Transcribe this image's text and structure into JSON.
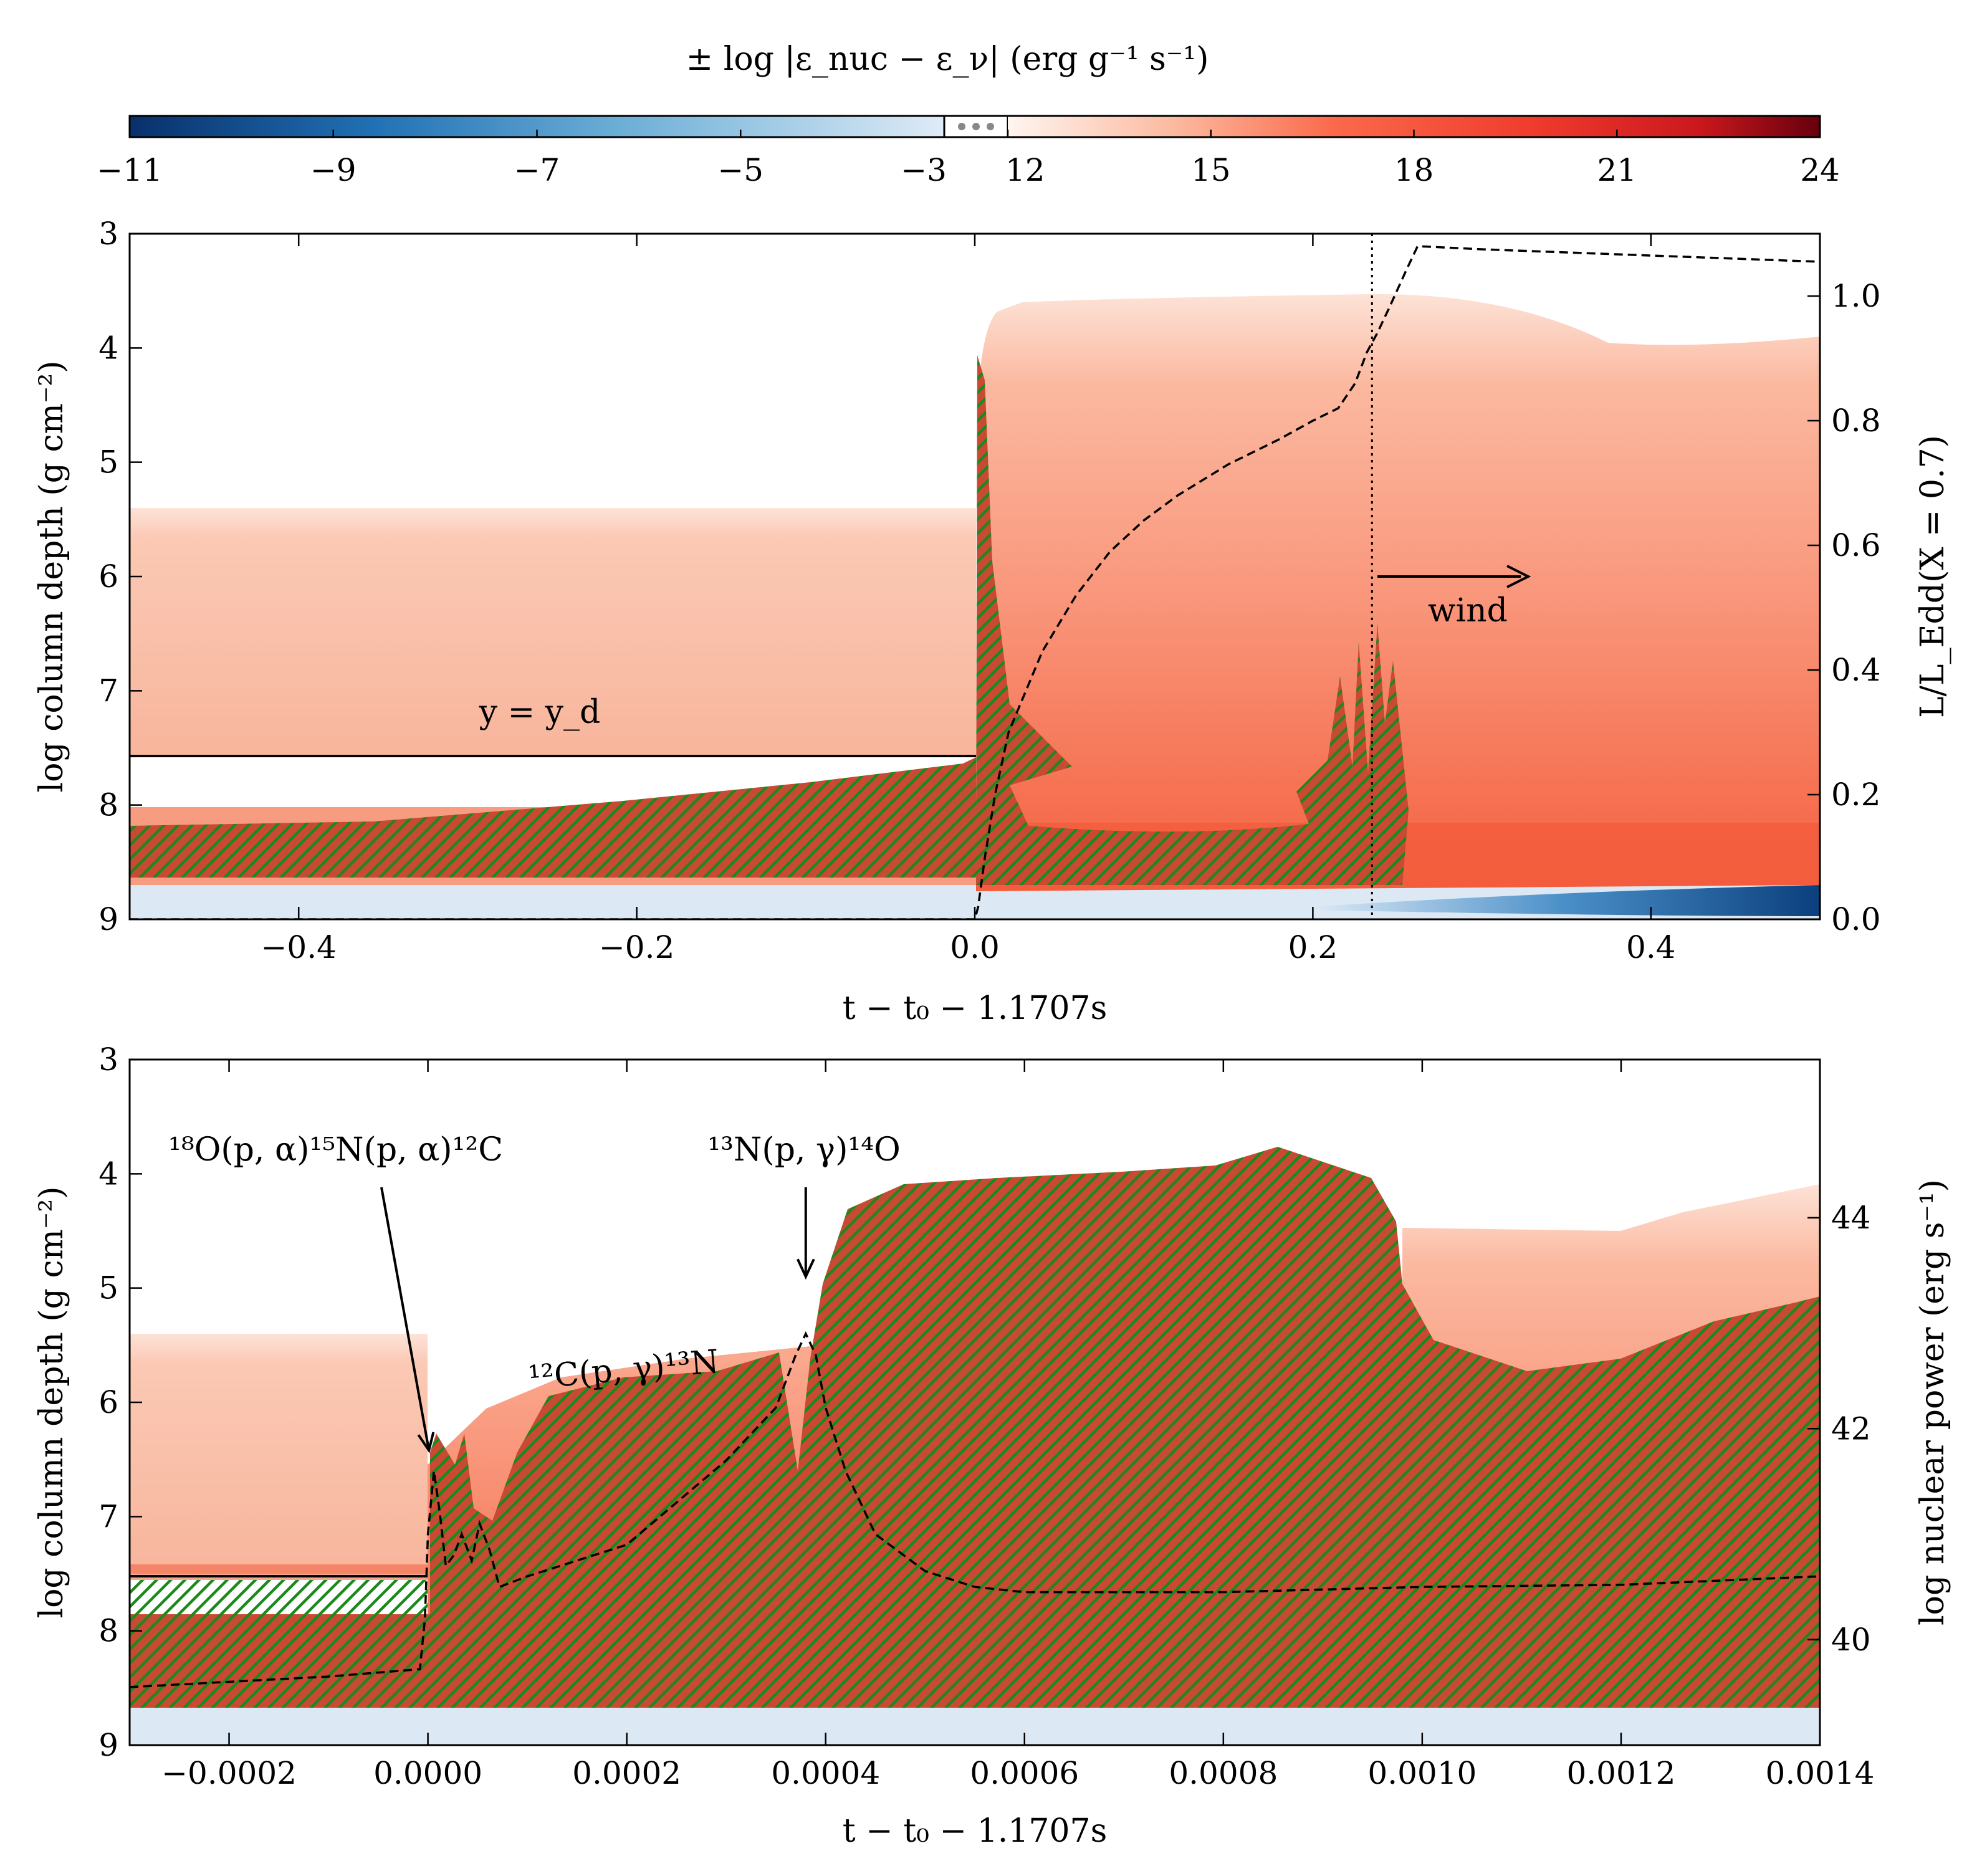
{
  "colors": {
    "hatch": "#1a8a1a",
    "neg_low": "#deeaf6",
    "neg_high": "#08306b",
    "pos_low": "#fde0d2",
    "pos_mid": "#f98a6e",
    "pos_high": "#67000d",
    "curve": "#000000"
  },
  "colorbar": {
    "title": "± log |ε_nuc − ε_ν| (erg g⁻¹ s⁻¹)",
    "neg_ticks": [
      "−11",
      "−9",
      "−7",
      "−5",
      "−3"
    ],
    "neg_values": [
      -11,
      -9,
      -7,
      -5,
      -3
    ],
    "pos_ticks": [
      "12",
      "15",
      "18",
      "21",
      "24"
    ],
    "pos_values": [
      12,
      15,
      18,
      21,
      24
    ],
    "break_icon": "ellipsis-icon"
  },
  "chart_data": [
    {
      "type": "area",
      "title": "",
      "xlabel": "t − t₀ − 1.1707s",
      "ylabel": "log column depth (g cm⁻²)",
      "y2label": "L/L_Edd(X = 0.7)",
      "xlim": [
        -0.5,
        0.5
      ],
      "ylim": [
        9,
        3
      ],
      "y2lim": [
        0,
        1.1
      ],
      "xticks": [
        -0.4,
        -0.2,
        0.0,
        0.2,
        0.4
      ],
      "xtick_labels": [
        "−0.4",
        "−0.2",
        "0.0",
        "0.2",
        "0.4"
      ],
      "yticks": [
        3,
        4,
        5,
        6,
        7,
        8,
        9
      ],
      "ytick_labels": [
        "3",
        "4",
        "5",
        "6",
        "7",
        "8",
        "9"
      ],
      "y2ticks": [
        0.0,
        0.2,
        0.4,
        0.6,
        0.8,
        1.0
      ],
      "y2tick_labels": [
        "0.0",
        "0.2",
        "0.4",
        "0.6",
        "0.8",
        "1.0"
      ],
      "series": [
        {
          "name": "L/L_Edd",
          "axis": "right",
          "x": [
            -0.5,
            -0.2,
            0.0,
            0.002,
            0.006,
            0.012,
            0.02,
            0.04,
            0.06,
            0.08,
            0.1,
            0.12,
            0.15,
            0.18,
            0.2,
            0.215,
            0.225,
            0.232,
            0.238,
            0.245,
            0.255,
            0.262,
            0.3,
            0.35,
            0.4,
            0.45,
            0.5
          ],
          "y": [
            0.0,
            0.0,
            0.0,
            0.02,
            0.1,
            0.2,
            0.3,
            0.43,
            0.52,
            0.59,
            0.64,
            0.68,
            0.73,
            0.77,
            0.8,
            0.82,
            0.86,
            0.91,
            0.94,
            0.98,
            1.04,
            1.08,
            1.075,
            1.07,
            1.065,
            1.06,
            1.055
          ]
        }
      ],
      "annotations": {
        "layer_label": "y = y_d",
        "layer_depth": 7.57,
        "wind_label": "wind",
        "wind_start": 0.235
      }
    },
    {
      "type": "area",
      "title": "",
      "xlabel": "t − t₀ − 1.1707s",
      "ylabel": "log column depth (g cm⁻²)",
      "y2label": "log nuclear power (erg s⁻¹)",
      "xlim": [
        -0.0003,
        0.0014
      ],
      "ylim": [
        9,
        3
      ],
      "y2lim": [
        39.0,
        45.5
      ],
      "xticks": [
        -0.0002,
        0.0,
        0.0002,
        0.0004,
        0.0006,
        0.0008,
        0.001,
        0.0012,
        0.0014
      ],
      "xtick_labels": [
        "−0.0002",
        "0.0000",
        "0.0002",
        "0.0004",
        "0.0006",
        "0.0008",
        "0.0010",
        "0.0012",
        "0.0014"
      ],
      "yticks": [
        3,
        4,
        5,
        6,
        7,
        8,
        9
      ],
      "ytick_labels": [
        "3",
        "4",
        "5",
        "6",
        "7",
        "8",
        "9"
      ],
      "y2ticks": [
        40,
        42,
        44
      ],
      "y2tick_labels": [
        "40",
        "42",
        "44"
      ],
      "series": [
        {
          "name": "nuclear power",
          "axis": "right",
          "x": [
            -0.0003,
            -0.0001,
            -8e-06,
            -3e-06,
            0.0,
            6e-06,
            1.2e-05,
            1.8e-05,
            2.6e-05,
            3.4e-05,
            4.4e-05,
            5.2e-05,
            6.2e-05,
            7.2e-05,
            0.0001,
            0.0002,
            0.0003,
            0.00035,
            0.00037,
            0.00038,
            0.00039,
            0.0004,
            0.00042,
            0.00045,
            0.0005,
            0.00055,
            0.0006,
            0.0008,
            0.001,
            0.0012,
            0.0014
          ],
          "y": [
            39.55,
            39.65,
            39.72,
            40.2,
            41.0,
            41.6,
            41.2,
            40.7,
            40.8,
            41.0,
            40.75,
            41.1,
            40.85,
            40.5,
            40.6,
            40.9,
            41.7,
            42.2,
            42.7,
            42.9,
            42.7,
            42.2,
            41.6,
            41.0,
            40.65,
            40.5,
            40.45,
            40.45,
            40.5,
            40.52,
            40.6
          ]
        }
      ],
      "annotations": {
        "reaction_a": "¹⁸O(p, α)¹⁵N(p, α)¹²C",
        "reaction_a_time": 1e-06,
        "reaction_a_depth": 6.42,
        "reaction_b": "¹³N(p, γ)¹⁴O",
        "reaction_b_time": 0.00038,
        "reaction_b_depth": 4.9,
        "reaction_c": "¹²C(p, γ)¹³N",
        "layer_depth": 7.6
      }
    }
  ]
}
